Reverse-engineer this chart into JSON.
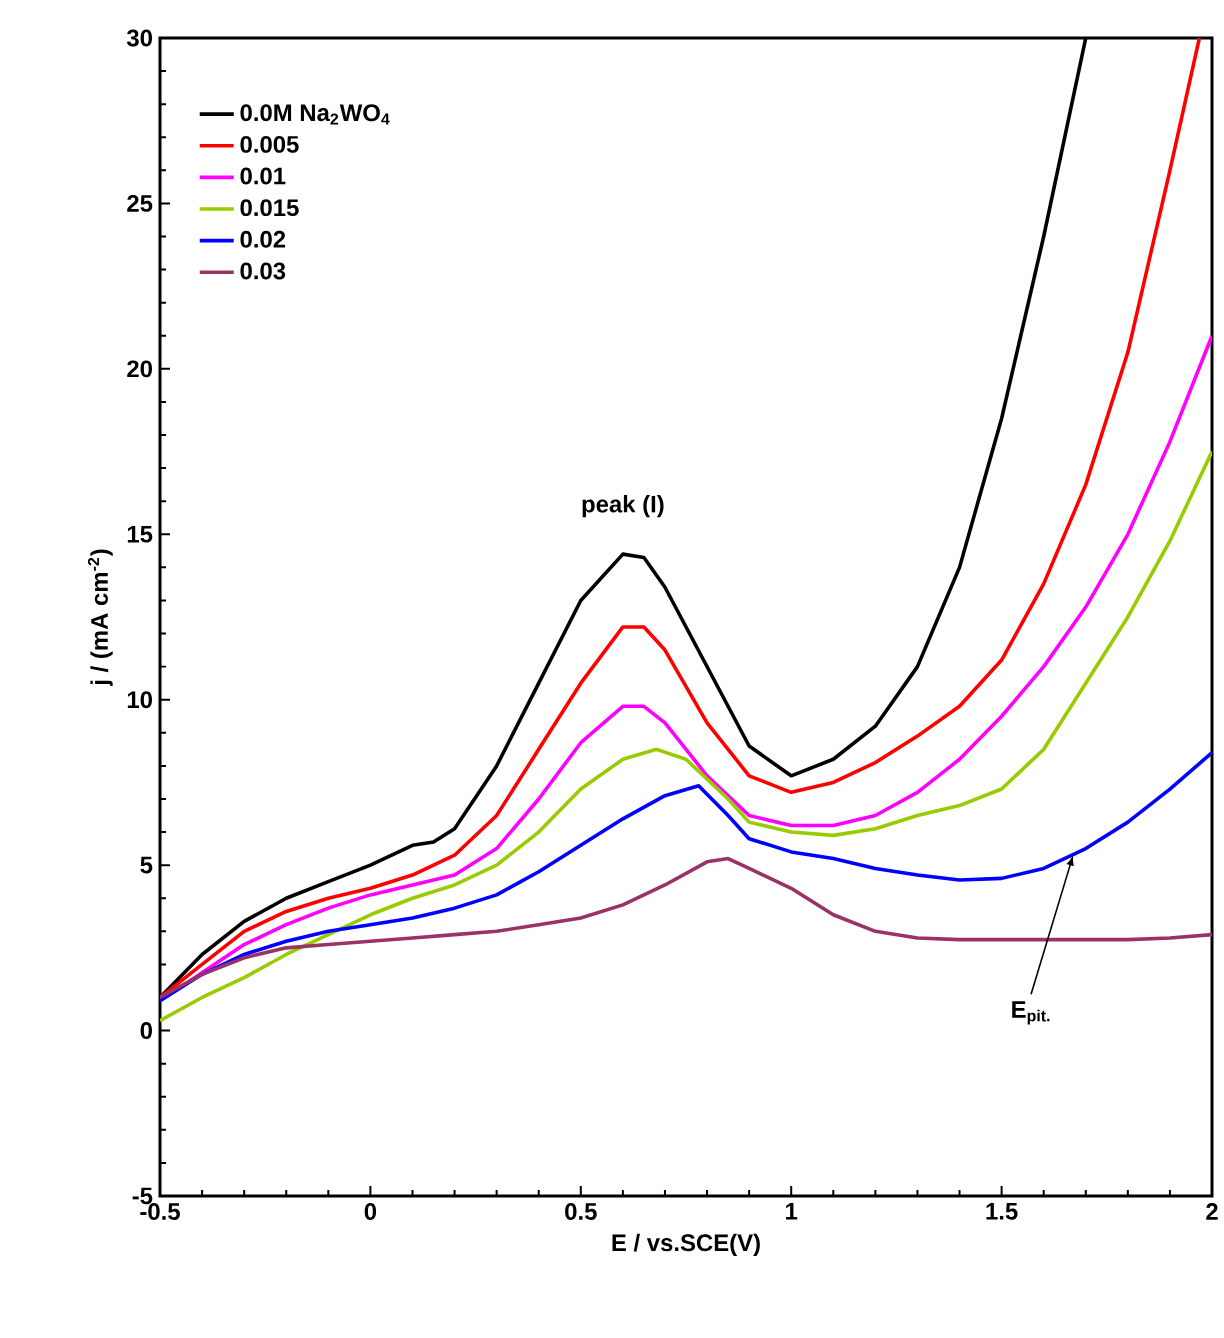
{
  "chart_data": {
    "type": "line",
    "xlabel": "E / vs.SCE(V)",
    "ylabel": "j / (mA cm$^{-2}$)",
    "xlim": [
      -0.5,
      2
    ],
    "ylim": [
      -5,
      30
    ],
    "xticks": [
      -0.5,
      0,
      0.5,
      1,
      1.5,
      2
    ],
    "yticks": [
      -5,
      0,
      5,
      10,
      15,
      20,
      25,
      30
    ],
    "legend": "top left",
    "grid": false,
    "marker": "none",
    "line_style": "solid",
    "annotations": [
      "peak (I)",
      {
        "text": "E$_{pit.}$",
        "x": 1.67,
        "y": 5.3
      }
    ],
    "series": [
      {
        "name": "0.0M Na$_{2}$WO$_{4}$",
        "color": "#000000",
        "x": [
          -0.5,
          -0.4,
          -0.3,
          -0.2,
          -0.1,
          0,
          0.1,
          0.15,
          0.2,
          0.3,
          0.4,
          0.5,
          0.6,
          0.65,
          0.7,
          0.8,
          0.9,
          1.0,
          1.1,
          1.2,
          1.3,
          1.4,
          1.5,
          1.6,
          1.7
        ],
        "values": [
          1.0,
          2.3,
          3.3,
          4.0,
          4.5,
          5.0,
          5.6,
          5.7,
          6.1,
          8.0,
          10.5,
          13.0,
          14.4,
          14.3,
          13.4,
          11.0,
          8.6,
          7.7,
          8.2,
          9.2,
          11.0,
          14.0,
          18.5,
          24,
          30
        ]
      },
      {
        "name": "0.005",
        "color": "#ff0000",
        "x": [
          -0.5,
          -0.4,
          -0.3,
          -0.2,
          -0.1,
          0,
          0.1,
          0.2,
          0.3,
          0.4,
          0.5,
          0.6,
          0.65,
          0.7,
          0.8,
          0.9,
          1.0,
          1.1,
          1.2,
          1.3,
          1.4,
          1.5,
          1.6,
          1.7,
          1.8,
          1.9,
          1.97
        ],
        "values": [
          1.0,
          2.0,
          3.0,
          3.6,
          4.0,
          4.3,
          4.7,
          5.3,
          6.5,
          8.5,
          10.5,
          12.2,
          12.2,
          11.5,
          9.3,
          7.7,
          7.2,
          7.5,
          8.1,
          8.9,
          9.8,
          11.2,
          13.5,
          16.5,
          20.5,
          26,
          30
        ]
      },
      {
        "name": "0.01",
        "color": "#ff00ff",
        "x": [
          -0.5,
          -0.3,
          -0.2,
          -0.1,
          0,
          0.1,
          0.2,
          0.3,
          0.4,
          0.5,
          0.6,
          0.65,
          0.7,
          0.8,
          0.9,
          1.0,
          1.1,
          1.2,
          1.3,
          1.4,
          1.5,
          1.6,
          1.7,
          1.8,
          1.9,
          2.0
        ],
        "values": [
          0.9,
          2.6,
          3.2,
          3.7,
          4.1,
          4.4,
          4.7,
          5.5,
          7.0,
          8.7,
          9.8,
          9.8,
          9.3,
          7.7,
          6.5,
          6.2,
          6.2,
          6.5,
          7.2,
          8.2,
          9.5,
          11.0,
          12.8,
          15.0,
          17.8,
          21
        ]
      },
      {
        "name": "0.015",
        "color": "#99cc00",
        "x": [
          -0.5,
          -0.4,
          -0.3,
          -0.2,
          -0.1,
          0,
          0.1,
          0.2,
          0.3,
          0.4,
          0.5,
          0.6,
          0.68,
          0.75,
          0.85,
          0.9,
          1.0,
          1.1,
          1.2,
          1.3,
          1.4,
          1.5,
          1.6,
          1.7,
          1.8,
          1.9,
          2.0
        ],
        "values": [
          0.3,
          1.0,
          1.6,
          2.3,
          2.9,
          3.5,
          4.0,
          4.4,
          5.0,
          6.0,
          7.3,
          8.2,
          8.5,
          8.2,
          7.0,
          6.3,
          6.0,
          5.9,
          6.1,
          6.5,
          6.8,
          7.3,
          8.5,
          10.5,
          12.5,
          14.8,
          17.5
        ]
      },
      {
        "name": "0.02",
        "color": "#0000ff",
        "x": [
          -0.5,
          -0.4,
          -0.3,
          -0.2,
          -0.1,
          0,
          0.1,
          0.2,
          0.3,
          0.4,
          0.5,
          0.6,
          0.7,
          0.78,
          0.85,
          0.9,
          1.0,
          1.1,
          1.2,
          1.3,
          1.4,
          1.5,
          1.6,
          1.7,
          1.8,
          1.9,
          2.0
        ],
        "values": [
          0.9,
          1.7,
          2.3,
          2.7,
          3.0,
          3.2,
          3.4,
          3.7,
          4.1,
          4.8,
          5.6,
          6.4,
          7.1,
          7.4,
          6.5,
          5.8,
          5.4,
          5.2,
          4.9,
          4.7,
          4.55,
          4.6,
          4.9,
          5.5,
          6.3,
          7.3,
          8.4
        ]
      },
      {
        "name": "0.03",
        "color": "#993366",
        "x": [
          -0.5,
          -0.4,
          -0.3,
          -0.2,
          -0.1,
          0,
          0.1,
          0.2,
          0.3,
          0.4,
          0.5,
          0.6,
          0.7,
          0.8,
          0.85,
          0.9,
          1.0,
          1.1,
          1.2,
          1.3,
          1.4,
          1.5,
          1.6,
          1.7,
          1.8,
          1.9,
          2.0
        ],
        "values": [
          1.0,
          1.7,
          2.2,
          2.5,
          2.6,
          2.7,
          2.8,
          2.9,
          3.0,
          3.2,
          3.4,
          3.8,
          4.4,
          5.1,
          5.2,
          4.9,
          4.3,
          3.5,
          3.0,
          2.8,
          2.75,
          2.75,
          2.75,
          2.75,
          2.75,
          2.8,
          2.9
        ]
      }
    ]
  }
}
